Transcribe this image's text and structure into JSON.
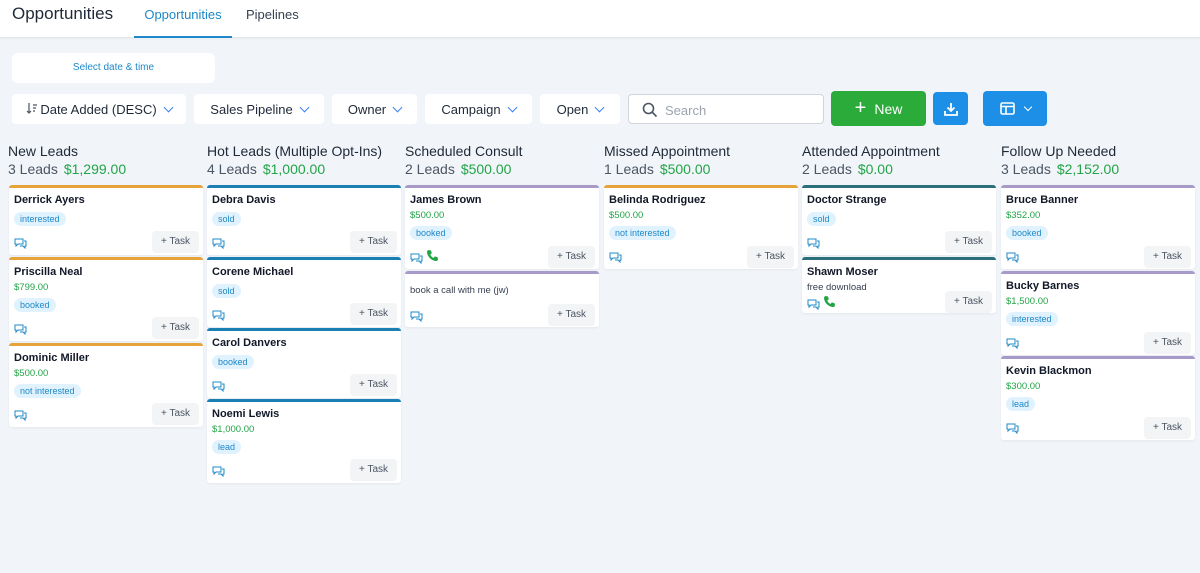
{
  "header": {
    "title": "Opportunities",
    "tabs": [
      "Opportunities",
      "Pipelines"
    ]
  },
  "toolbar": {
    "date_label": "Select date & time",
    "sort_label": "Date Added (DESC)",
    "pipeline_label": "Sales Pipeline",
    "owner_label": "Owner",
    "campaign_label": "Campaign",
    "status_label": "Open",
    "search_placeholder": "Search",
    "new_label": "New",
    "sort_icon": "sort-icon",
    "download_icon": "download-icon",
    "layout_icon": "layout-icon"
  },
  "colors": {
    "accent": "#1e88c8",
    "green": "#2bab3a",
    "amount": "#22a447",
    "orange": "#e5a33a",
    "blue": "#1a7fb3",
    "purple": "#a89ac8",
    "teal": "#2b6f7a"
  },
  "task_label": "+ Task",
  "columns": [
    {
      "title": "New Leads",
      "count": "3 Leads",
      "amount": "$1,299.00",
      "cards": [
        {
          "name": "Derrick Ayers",
          "badge": "interested"
        },
        {
          "name": "Priscilla Neal",
          "value": "$799.00",
          "badge": "booked"
        },
        {
          "name": "Dominic Miller",
          "value": "$500.00",
          "badge": "not interested"
        }
      ]
    },
    {
      "title": "Hot Leads (Multiple Opt-Ins)",
      "count": "4 Leads",
      "amount": "$1,000.00",
      "cards": [
        {
          "name": "Debra Davis",
          "badge": "sold"
        },
        {
          "name": "Corene Michael",
          "badge": "sold"
        },
        {
          "name": "Carol Danvers",
          "badge": "booked"
        },
        {
          "name": "Noemi Lewis",
          "value": "$1,000.00",
          "badge": "lead"
        }
      ]
    },
    {
      "title": "Scheduled Consult",
      "count": "2 Leads",
      "amount": "$500.00",
      "cards": [
        {
          "name": "James Brown",
          "value": "$500.00",
          "badge": "booked"
        },
        {
          "note": "book a call with me (jw)"
        }
      ]
    },
    {
      "title": "Missed Appointment",
      "count": "1 Leads",
      "amount": "$500.00",
      "cards": [
        {
          "name": "Belinda Rodriguez",
          "value": "$500.00",
          "badge": "not interested"
        }
      ]
    },
    {
      "title": "Attended Appointment",
      "count": "2 Leads",
      "amount": "$0.00",
      "cards": [
        {
          "name": "Doctor Strange",
          "badge": "sold"
        },
        {
          "name": "Shawn Moser",
          "source": "free download"
        }
      ]
    },
    {
      "title": "Follow Up Needed",
      "count": "3 Leads",
      "amount": "$2,152.00",
      "cards": [
        {
          "name": "Bruce Banner",
          "value": "$352.00",
          "badge": "booked"
        },
        {
          "name": "Bucky Barnes",
          "value": "$1,500.00",
          "badge": "interested"
        },
        {
          "name": "Kevin Blackmon",
          "value": "$300.00",
          "badge": "lead"
        }
      ]
    }
  ]
}
